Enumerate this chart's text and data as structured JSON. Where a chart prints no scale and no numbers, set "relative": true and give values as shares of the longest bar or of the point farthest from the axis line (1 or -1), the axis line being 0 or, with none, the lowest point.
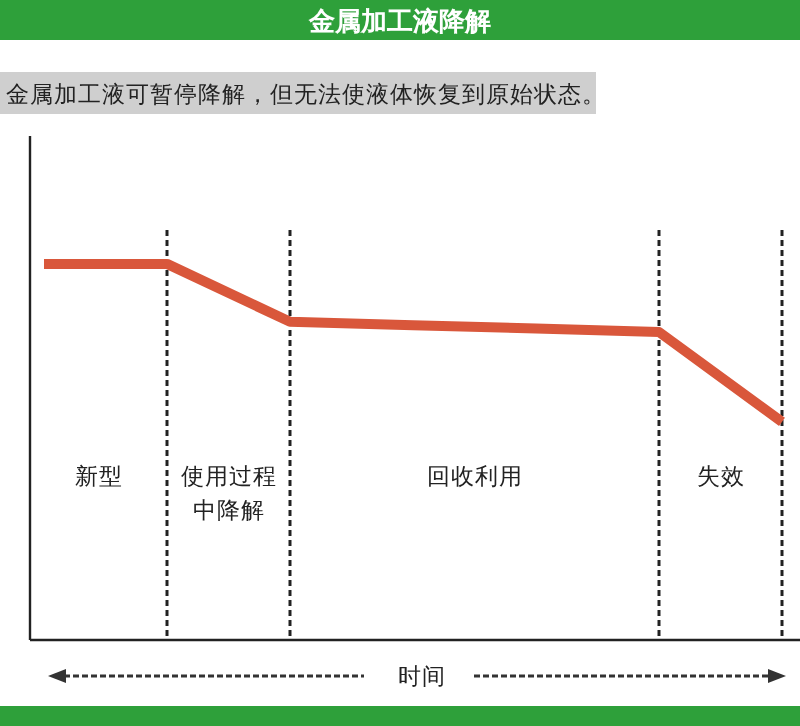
{
  "chart_data": {
    "type": "line",
    "title": "金属加工液降解",
    "subtitle": "金属加工液可暂停降解，但无法使液体恢复到原始状态。",
    "xlabel": "时间",
    "relative": true,
    "categories": [
      null,
      null,
      null,
      null,
      null,
      null,
      null
    ],
    "series": [
      {
        "color": "#d9573b",
        "values": [
          1,
          1,
          0.846,
          0.837,
          0.828,
          0.819,
          0.58
        ]
      }
    ],
    "grid": "x",
    "annotations": [
      "新型",
      "使用过程中降解",
      "回收利用",
      "失效"
    ],
    "marker": "none",
    "line_style": "solid"
  }
}
